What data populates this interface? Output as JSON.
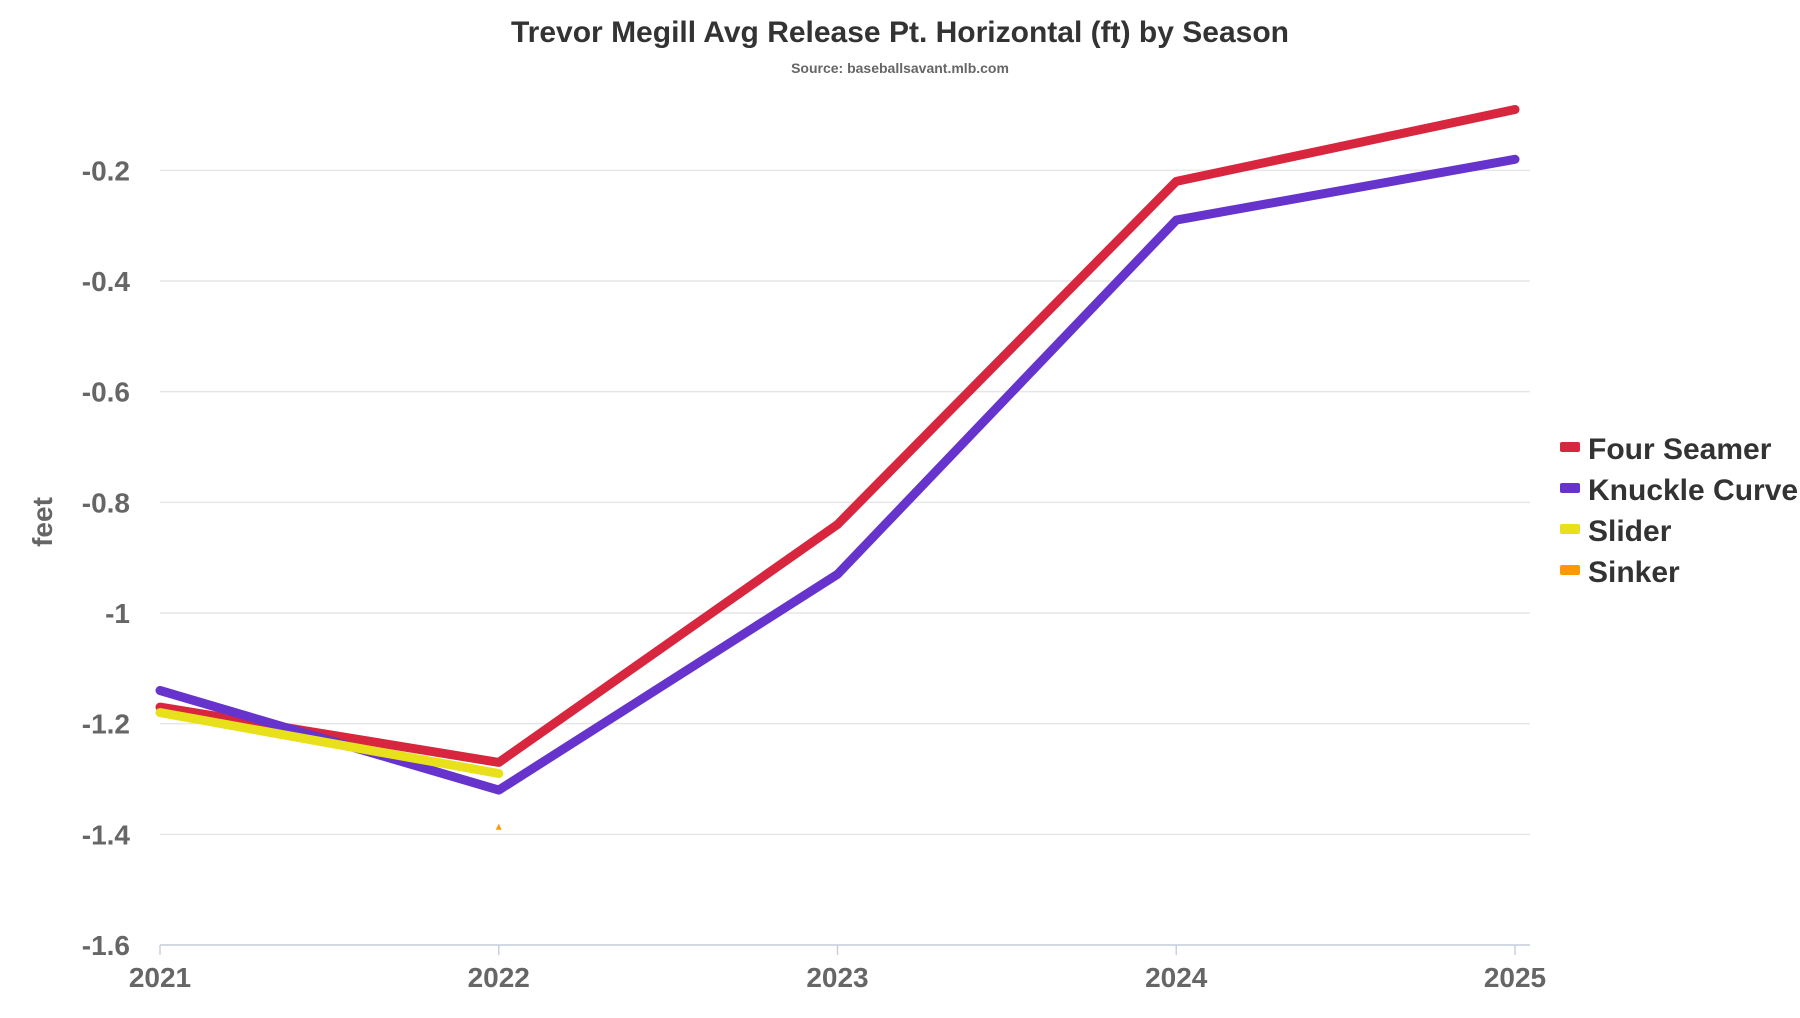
{
  "chart_data": {
    "type": "line",
    "title": "Trevor Megill Avg Release Pt. Horizontal (ft) by Season",
    "subtitle": "Source: baseballsavant.mlb.com",
    "xlabel": "",
    "ylabel": "feet",
    "categories": [
      "2021",
      "2022",
      "2023",
      "2024",
      "2025"
    ],
    "ylim": [
      -1.6,
      -0.1
    ],
    "yticks": [
      -0.2,
      -0.4,
      -0.6,
      -0.8,
      -1,
      -1.2,
      -1.4,
      -1.6
    ],
    "ytick_labels": [
      "-0.2",
      "-0.4",
      "-0.6",
      "-0.8",
      "-1",
      "-1.2",
      "-1.4",
      "-1.6"
    ],
    "grid": true,
    "legend_position": "right",
    "series": [
      {
        "name": "Four Seamer",
        "color": "#d7263d",
        "values": [
          -1.17,
          -1.27,
          -0.84,
          -0.22,
          -0.09
        ]
      },
      {
        "name": "Knuckle Curve",
        "color": "#6633cc",
        "values": [
          -1.14,
          -1.32,
          -0.93,
          -0.29,
          -0.18
        ]
      },
      {
        "name": "Slider",
        "color": "#e8e01a",
        "values": [
          -1.18,
          -1.29,
          null,
          null,
          null
        ]
      },
      {
        "name": "Sinker",
        "color": "#ff9900",
        "values": [
          null,
          -1.39,
          null,
          null,
          null
        ]
      }
    ]
  }
}
